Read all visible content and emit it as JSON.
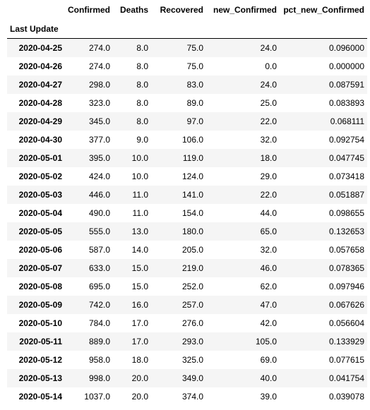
{
  "table": {
    "index_name": "Last Update",
    "columns": [
      "Confirmed",
      "Deaths",
      "Recovered",
      "new_Confirmed",
      "pct_new_Confirmed"
    ],
    "rows": [
      {
        "index": "2020-04-25",
        "cells": [
          "274.0",
          "8.0",
          "75.0",
          "24.0",
          "0.096000"
        ]
      },
      {
        "index": "2020-04-26",
        "cells": [
          "274.0",
          "8.0",
          "75.0",
          "0.0",
          "0.000000"
        ]
      },
      {
        "index": "2020-04-27",
        "cells": [
          "298.0",
          "8.0",
          "83.0",
          "24.0",
          "0.087591"
        ]
      },
      {
        "index": "2020-04-28",
        "cells": [
          "323.0",
          "8.0",
          "89.0",
          "25.0",
          "0.083893"
        ]
      },
      {
        "index": "2020-04-29",
        "cells": [
          "345.0",
          "8.0",
          "97.0",
          "22.0",
          "0.068111"
        ]
      },
      {
        "index": "2020-04-30",
        "cells": [
          "377.0",
          "9.0",
          "106.0",
          "32.0",
          "0.092754"
        ]
      },
      {
        "index": "2020-05-01",
        "cells": [
          "395.0",
          "10.0",
          "119.0",
          "18.0",
          "0.047745"
        ]
      },
      {
        "index": "2020-05-02",
        "cells": [
          "424.0",
          "10.0",
          "124.0",
          "29.0",
          "0.073418"
        ]
      },
      {
        "index": "2020-05-03",
        "cells": [
          "446.0",
          "11.0",
          "141.0",
          "22.0",
          "0.051887"
        ]
      },
      {
        "index": "2020-05-04",
        "cells": [
          "490.0",
          "11.0",
          "154.0",
          "44.0",
          "0.098655"
        ]
      },
      {
        "index": "2020-05-05",
        "cells": [
          "555.0",
          "13.0",
          "180.0",
          "65.0",
          "0.132653"
        ]
      },
      {
        "index": "2020-05-06",
        "cells": [
          "587.0",
          "14.0",
          "205.0",
          "32.0",
          "0.057658"
        ]
      },
      {
        "index": "2020-05-07",
        "cells": [
          "633.0",
          "15.0",
          "219.0",
          "46.0",
          "0.078365"
        ]
      },
      {
        "index": "2020-05-08",
        "cells": [
          "695.0",
          "15.0",
          "252.0",
          "62.0",
          "0.097946"
        ]
      },
      {
        "index": "2020-05-09",
        "cells": [
          "742.0",
          "16.0",
          "257.0",
          "47.0",
          "0.067626"
        ]
      },
      {
        "index": "2020-05-10",
        "cells": [
          "784.0",
          "17.0",
          "276.0",
          "42.0",
          "0.056604"
        ]
      },
      {
        "index": "2020-05-11",
        "cells": [
          "889.0",
          "17.0",
          "293.0",
          "105.0",
          "0.133929"
        ]
      },
      {
        "index": "2020-05-12",
        "cells": [
          "958.0",
          "18.0",
          "325.0",
          "69.0",
          "0.077615"
        ]
      },
      {
        "index": "2020-05-13",
        "cells": [
          "998.0",
          "20.0",
          "349.0",
          "40.0",
          "0.041754"
        ]
      },
      {
        "index": "2020-05-14",
        "cells": [
          "1037.0",
          "20.0",
          "374.0",
          "39.0",
          "0.039078"
        ]
      }
    ]
  }
}
